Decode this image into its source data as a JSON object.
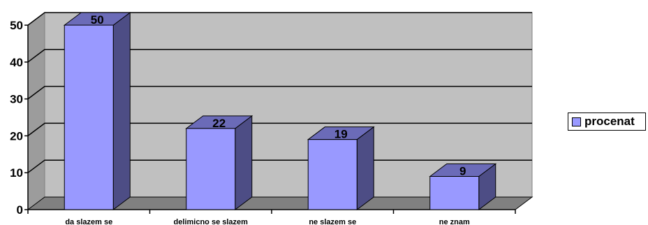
{
  "chart_data": {
    "type": "bar",
    "categories": [
      "da slazem se",
      "delimicno se slazem",
      "ne slazem se",
      "ne znam"
    ],
    "series": [
      {
        "name": "procenat",
        "values": [
          50,
          22,
          19,
          9
        ]
      }
    ],
    "ylim": [
      0,
      50
    ],
    "yticks": [
      0,
      10,
      20,
      30,
      40,
      50
    ],
    "grid": true,
    "legend_position": "right",
    "three_d": true,
    "colors": {
      "bar_front": "#9999ff",
      "bar_top": "#6b6bb8",
      "bar_side": "#4d4d85",
      "back_wall": "#c0c0c0",
      "floor": "#808080",
      "grid_line": "#000000"
    }
  },
  "legend": {
    "label": "procenat"
  }
}
